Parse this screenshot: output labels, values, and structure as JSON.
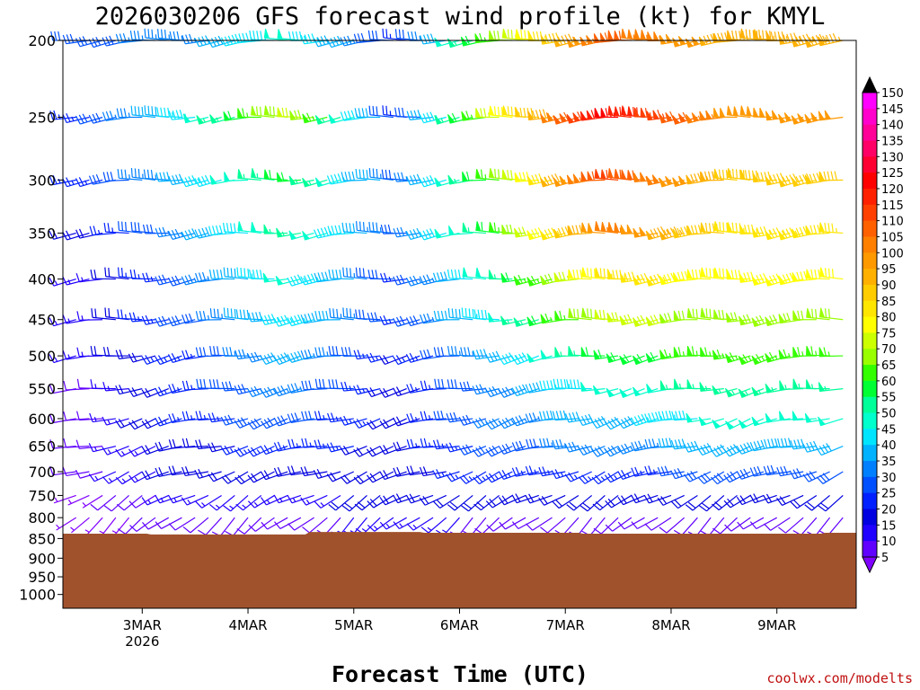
{
  "chart_data": {
    "type": "wind-barb-time-height",
    "title": "2026030206 GFS forecast wind profile (kt) for KMYL",
    "xlabel": "Forecast Time (UTC)",
    "credit": "coolwx.com/modelts",
    "y_ticks": [
      "200",
      "250",
      "300",
      "350",
      "400",
      "450",
      "500",
      "550",
      "600",
      "650",
      "700",
      "750",
      "800",
      "850",
      "900",
      "950",
      "1000"
    ],
    "y_tick_values": [
      200,
      250,
      300,
      350,
      400,
      450,
      500,
      550,
      600,
      650,
      700,
      750,
      800,
      850,
      900,
      950,
      1000
    ],
    "x_ticks": [
      {
        "label": "3MAR",
        "sub": "2026",
        "t": 24
      },
      {
        "label": "4MAR",
        "sub": "",
        "t": 48
      },
      {
        "label": "5MAR",
        "sub": "",
        "t": 72
      },
      {
        "label": "6MAR",
        "sub": "",
        "t": 96
      },
      {
        "label": "7MAR",
        "sub": "",
        "t": 120
      },
      {
        "label": "8MAR",
        "sub": "",
        "t": 144
      },
      {
        "label": "9MAR",
        "sub": "",
        "t": 168
      }
    ],
    "x_range_hours": [
      6,
      186
    ],
    "y_range_hpa": [
      200,
      1000
    ],
    "y_scale": "log",
    "terrain_color": "#a0522d",
    "terrain_top_hpa": [
      {
        "t": 6,
        "p": 838
      },
      {
        "t": 25,
        "p": 838
      },
      {
        "t": 26,
        "p": 840
      },
      {
        "t": 61,
        "p": 840
      },
      {
        "t": 62,
        "p": 834
      },
      {
        "t": 87,
        "p": 834
      },
      {
        "t": 88,
        "p": 836
      },
      {
        "t": 123,
        "p": 836
      },
      {
        "t": 124,
        "p": 838
      },
      {
        "t": 178,
        "p": 838
      },
      {
        "t": 179,
        "p": 836
      },
      {
        "t": 186,
        "p": 836
      }
    ],
    "barb_times": [
      6,
      9,
      12,
      15,
      18,
      21,
      24,
      27,
      30,
      33,
      36,
      39,
      42,
      45,
      48,
      51,
      54,
      57,
      60,
      63,
      66,
      69,
      72,
      75,
      78,
      81,
      84,
      87,
      90,
      93,
      96,
      99,
      102,
      105,
      108,
      111,
      114,
      117,
      120,
      123,
      126,
      129,
      132,
      135,
      138,
      141,
      144,
      147,
      150,
      153,
      156,
      159,
      162,
      165,
      168,
      171,
      174,
      177,
      180,
      183,
      186
    ],
    "barb_levels": [
      200,
      250,
      300,
      350,
      400,
      450,
      500,
      550,
      600,
      650,
      700,
      750,
      800
    ],
    "wind_profile_note_levels": {
      "200": {
        "dir": 265,
        "speed_by_day": [
          30,
          35,
          50,
          25,
          70,
          110,
          95
        ]
      },
      "250": {
        "dir": 265,
        "speed_by_day": [
          25,
          45,
          75,
          25,
          80,
          125,
          100
        ]
      },
      "300": {
        "dir": 265,
        "speed_by_day": [
          25,
          40,
          60,
          30,
          70,
          115,
          90
        ]
      },
      "350": {
        "dir": 265,
        "speed_by_day": [
          20,
          35,
          55,
          30,
          65,
          105,
          85
        ]
      },
      "400": {
        "dir": 265,
        "speed_by_day": [
          15,
          30,
          50,
          25,
          55,
          85,
          80
        ]
      },
      "450": {
        "dir": 265,
        "speed_by_day": [
          15,
          30,
          45,
          25,
          50,
          75,
          70
        ]
      },
      "500": {
        "dir": 260,
        "speed_by_day": [
          15,
          25,
          40,
          20,
          40,
          60,
          65
        ]
      },
      "550": {
        "dir": 260,
        "speed_by_day": [
          10,
          25,
          35,
          20,
          35,
          50,
          55
        ]
      },
      "600": {
        "dir": 255,
        "speed_by_day": [
          10,
          25,
          30,
          20,
          35,
          40,
          50
        ]
      },
      "650": {
        "dir": 255,
        "speed_by_day": [
          10,
          20,
          25,
          20,
          30,
          35,
          40
        ]
      },
      "700": {
        "dir": 250,
        "speed_by_day": [
          10,
          20,
          20,
          20,
          25,
          25,
          30
        ]
      },
      "750": {
        "dir": 240,
        "speed_by_day": [
          5,
          15,
          15,
          20,
          20,
          20,
          20
        ]
      },
      "800": {
        "dir": 230,
        "speed_by_day": [
          5,
          10,
          10,
          15,
          10,
          10,
          10
        ]
      }
    },
    "colorbar": {
      "labels": [
        "150",
        "145",
        "140",
        "135",
        "130",
        "125",
        "120",
        "115",
        "110",
        "105",
        "100",
        "95",
        "90",
        "85",
        "80",
        "75",
        "70",
        "65",
        "60",
        "55",
        "50",
        "45",
        "40",
        "35",
        "30",
        "25",
        "20",
        "15",
        "10",
        "5"
      ],
      "colors": [
        "#ff00ff",
        "#ff00cc",
        "#ff0099",
        "#ff0066",
        "#ff0033",
        "#ff0000",
        "#ff2000",
        "#ff4000",
        "#ff6000",
        "#ff8000",
        "#ff9900",
        "#ffb000",
        "#ffcc00",
        "#ffe600",
        "#ffff00",
        "#ccff00",
        "#99ff00",
        "#33ff00",
        "#00ff33",
        "#00ff99",
        "#00ffcc",
        "#00e5ff",
        "#00b2ff",
        "#0080ff",
        "#0050ff",
        "#0020ff",
        "#0000e0",
        "#2000ff",
        "#6000ff",
        "#8000ff"
      ]
    }
  }
}
